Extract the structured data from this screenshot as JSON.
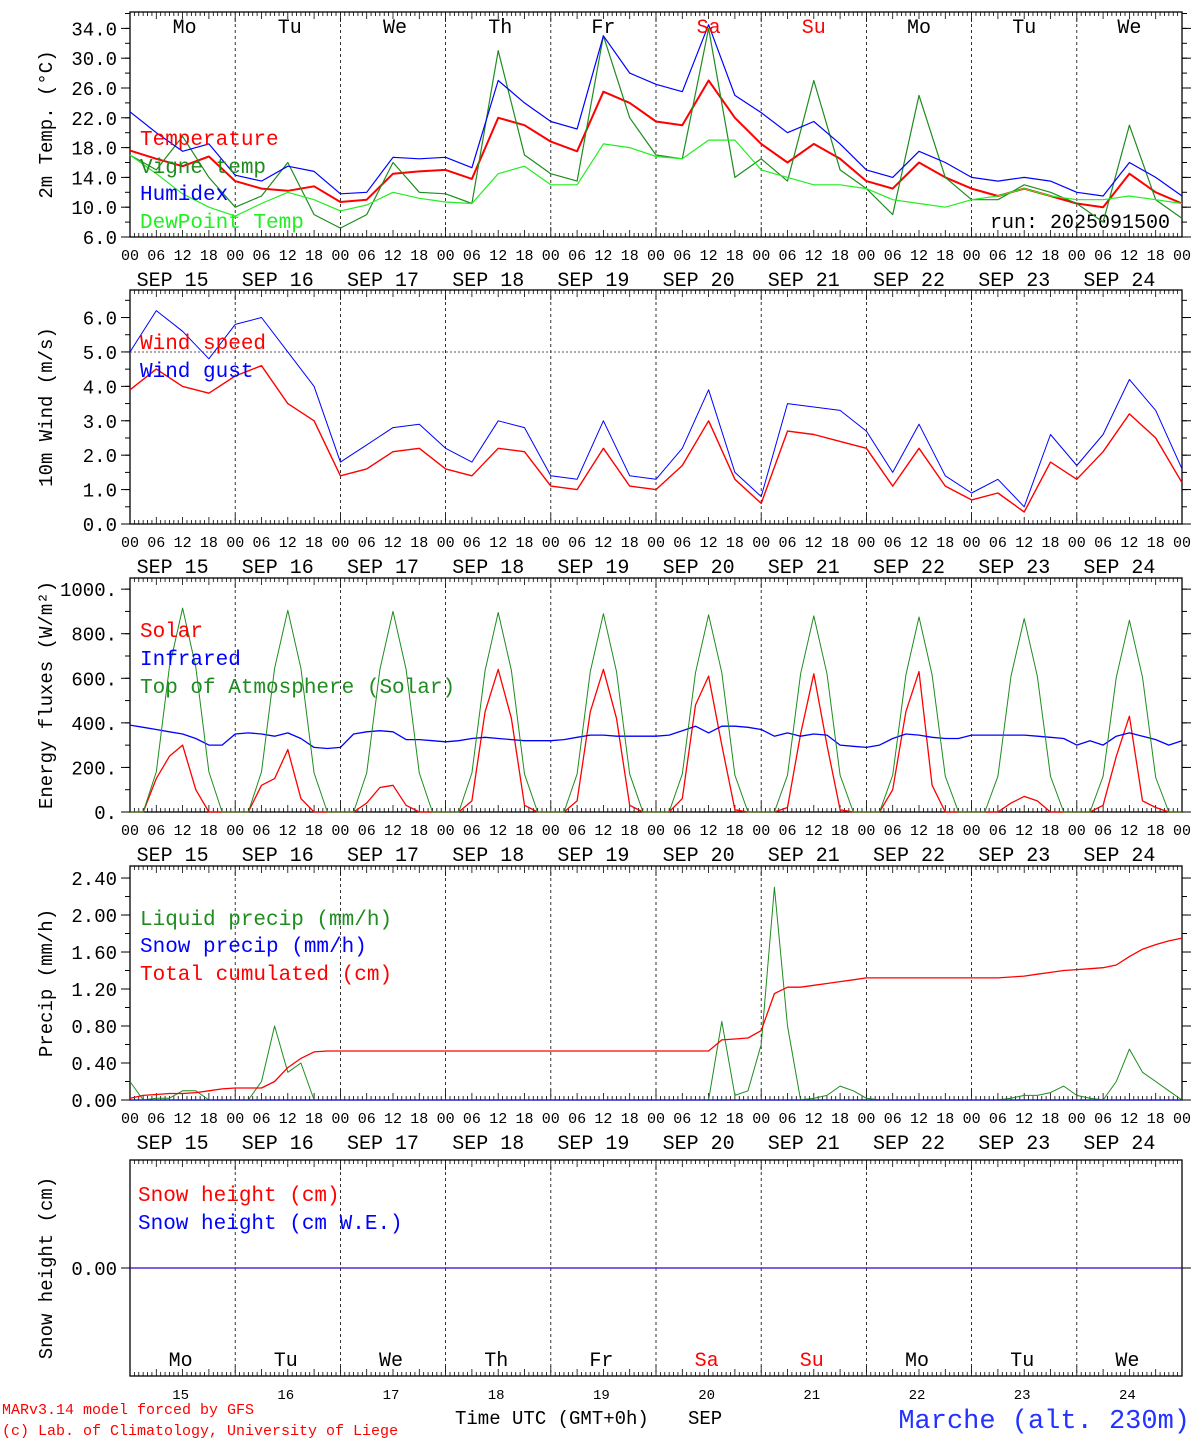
{
  "hour_labels": [
    "00",
    "06",
    "12",
    "18"
  ],
  "date_labels": [
    "SEP 15",
    "SEP 16",
    "SEP 17",
    "SEP 18",
    "SEP 19",
    "SEP 20",
    "SEP 21",
    "SEP 22",
    "SEP 23",
    "SEP 24"
  ],
  "weekdays": [
    {
      "label": "Mo",
      "color": "#000000"
    },
    {
      "label": "Tu",
      "color": "#000000"
    },
    {
      "label": "We",
      "color": "#000000"
    },
    {
      "label": "Th",
      "color": "#000000"
    },
    {
      "label": "Fr",
      "color": "#000000"
    },
    {
      "label": "Sa",
      "color": "#ff0000"
    },
    {
      "label": "Su",
      "color": "#ff0000"
    },
    {
      "label": "Mo",
      "color": "#000000"
    },
    {
      "label": "Tu",
      "color": "#000000"
    },
    {
      "label": "We",
      "color": "#000000"
    }
  ],
  "day_numbers": [
    "15",
    "16",
    "17",
    "18",
    "19",
    "20",
    "21",
    "22",
    "23",
    "24"
  ],
  "run_label": "run: 2025091500",
  "footer": {
    "xlabel": "Time UTC (GMT+0h)",
    "month": "SEP",
    "model": "MARv3.14 model forced by GFS",
    "credit": "(c) Lab. of Climatology, University of Liege",
    "station": "Marche (alt. 230m)"
  },
  "chart_data": [
    {
      "type": "line",
      "ylabel": "2m Temp. (°C)",
      "ylim": [
        6,
        36.2
      ],
      "yticks": [
        6,
        10,
        14,
        18,
        22,
        26,
        30,
        34
      ],
      "ytick_labels": [
        "6.0",
        "10.0",
        "14.0",
        "18.0",
        "22.0",
        "26.0",
        "30.0",
        "34.0"
      ],
      "minor_step": 2,
      "x_step_hours": 6,
      "series": [
        {
          "name": "Temperature",
          "color": "#ff0000",
          "width": 2,
          "values": [
            17.6,
            16.5,
            15.5,
            16.8,
            13.5,
            12.5,
            12.2,
            12.8,
            10.7,
            11,
            14.5,
            14.8,
            15,
            13.8,
            22,
            21,
            18.8,
            17.5,
            25.5,
            24,
            21.5,
            21,
            27,
            22,
            18.5,
            16,
            18.5,
            16.5,
            13.5,
            12.5,
            16,
            14,
            12.5,
            11.5,
            12.5,
            11.5,
            10.5,
            10,
            14.5,
            12,
            10.5
          ]
        },
        {
          "name": "Vigne temp",
          "color": "#1e8c1e",
          "width": 1.2,
          "values": [
            17,
            15,
            19.5,
            14,
            10,
            11.5,
            16,
            9,
            7.2,
            9,
            16,
            12,
            11.8,
            10.5,
            31,
            17,
            14.5,
            13.5,
            33,
            22,
            17,
            16.5,
            34,
            14,
            16.5,
            13.5,
            27,
            15,
            12.5,
            9,
            25,
            14,
            11,
            11,
            13,
            12,
            10.5,
            8,
            21,
            11,
            8.5
          ]
        },
        {
          "name": "Humidex",
          "color": "#0000ff",
          "width": 1.2,
          "values": [
            22.8,
            20,
            17.5,
            18.5,
            14.3,
            13.5,
            15.5,
            14.8,
            11.8,
            12,
            16.7,
            16.5,
            16.7,
            15.3,
            27,
            24,
            21.5,
            20.5,
            33,
            28,
            26.5,
            25.5,
            34.5,
            25,
            22.7,
            20,
            21.5,
            18.5,
            15,
            14,
            17.5,
            16,
            14,
            13.5,
            14,
            13.5,
            12,
            11.5,
            16,
            14,
            11.5
          ]
        },
        {
          "name": "DewPoint Temp",
          "color": "#22ee22",
          "width": 1.2,
          "values": [
            17,
            14.5,
            11.8,
            10,
            8.8,
            10.5,
            12,
            11,
            9.5,
            10.3,
            12,
            11.2,
            10.7,
            10.5,
            14.5,
            15.5,
            13,
            13,
            18.5,
            18,
            16.8,
            16.5,
            19,
            19,
            15,
            14,
            13,
            13,
            12.5,
            11,
            10.5,
            10,
            11,
            11.5,
            12.5,
            11.5,
            11,
            11,
            11.5,
            11,
            10.5
          ]
        }
      ]
    },
    {
      "type": "line",
      "ylabel": "10m Wind (m/s)",
      "ylim": [
        0,
        6.8
      ],
      "yticks": [
        0,
        1,
        2,
        3,
        4,
        5,
        6
      ],
      "ytick_labels": [
        "0.0",
        "1.0",
        "2.0",
        "3.0",
        "4.0",
        "5.0",
        "6.0"
      ],
      "minor_step": 0.5,
      "reference_line": 5.0,
      "x_step_hours": 6,
      "series": [
        {
          "name": "Wind speed",
          "color": "#ff0000",
          "width": 1.4,
          "values": [
            3.9,
            4.5,
            4,
            3.8,
            4.3,
            4.6,
            3.5,
            3,
            1.4,
            1.6,
            2.1,
            2.2,
            1.6,
            1.4,
            2.2,
            2.1,
            1.1,
            1.0,
            2.2,
            1.1,
            1.0,
            1.7,
            3.0,
            1.3,
            0.6,
            2.7,
            2.6,
            2.4,
            2.2,
            1.1,
            2.2,
            1.1,
            0.7,
            0.9,
            0.35,
            1.8,
            1.3,
            2.1,
            3.2,
            2.5,
            1.2
          ]
        },
        {
          "name": "Wind gust",
          "color": "#0000ff",
          "width": 1,
          "values": [
            5.0,
            6.2,
            5.6,
            4.8,
            5.8,
            6.0,
            5.0,
            4.0,
            1.8,
            2.3,
            2.8,
            2.9,
            2.2,
            1.8,
            3.0,
            2.8,
            1.4,
            1.3,
            3.0,
            1.4,
            1.3,
            2.2,
            3.9,
            1.5,
            0.8,
            3.5,
            3.4,
            3.3,
            2.7,
            1.5,
            2.9,
            1.4,
            0.9,
            1.3,
            0.5,
            2.6,
            1.7,
            2.6,
            4.2,
            3.3,
            1.6
          ]
        }
      ]
    },
    {
      "type": "line",
      "ylabel": "Energy fluxes (W/m²)",
      "ylim": [
        0,
        1050
      ],
      "yticks": [
        0,
        200,
        400,
        600,
        800,
        1000
      ],
      "ytick_labels": [
        "0.",
        "200.",
        "400.",
        "600.",
        "800.",
        "1000."
      ],
      "minor_step": 100,
      "x_step_hours": 3,
      "series": [
        {
          "name": "Solar",
          "color": "#ff0000",
          "width": 1.3,
          "values": [
            0,
            0,
            150,
            250,
            300,
            100,
            0,
            0,
            0,
            0,
            120,
            150,
            280,
            60,
            0,
            0,
            0,
            0,
            40,
            110,
            120,
            30,
            0,
            0,
            0,
            0,
            50,
            450,
            640,
            420,
            30,
            0,
            0,
            0,
            50,
            450,
            640,
            420,
            30,
            0,
            0,
            0,
            60,
            480,
            610,
            300,
            10,
            0,
            0,
            0,
            20,
            350,
            620,
            300,
            10,
            0,
            0,
            0,
            100,
            450,
            630,
            120,
            0,
            0,
            0,
            0,
            0,
            40,
            70,
            50,
            0,
            0,
            0,
            0,
            30,
            250,
            430,
            50,
            20,
            0,
            0
          ]
        },
        {
          "name": "Infrared",
          "color": "#0000ff",
          "width": 1.3,
          "values": [
            390,
            380,
            370,
            360,
            350,
            330,
            300,
            300,
            350,
            355,
            350,
            340,
            355,
            330,
            290,
            285,
            290,
            350,
            360,
            365,
            360,
            325,
            325,
            320,
            315,
            320,
            330,
            335,
            330,
            325,
            320,
            320,
            320,
            325,
            335,
            345,
            345,
            340,
            340,
            340,
            340,
            345,
            365,
            385,
            355,
            385,
            385,
            380,
            370,
            340,
            355,
            340,
            350,
            345,
            300,
            295,
            290,
            300,
            330,
            350,
            345,
            335,
            330,
            330,
            345,
            345,
            345,
            345,
            345,
            340,
            335,
            330,
            300,
            320,
            300,
            340,
            355,
            340,
            325,
            300,
            320
          ]
        },
        {
          "name": "Top of Atmosphere (Solar)",
          "color": "#1e8c1e",
          "width": 1,
          "values": [
            0,
            0,
            180,
            650,
            915,
            650,
            180,
            0,
            0,
            0,
            180,
            645,
            905,
            645,
            175,
            0,
            0,
            0,
            175,
            640,
            900,
            640,
            175,
            0,
            0,
            0,
            175,
            635,
            895,
            635,
            170,
            0,
            0,
            0,
            170,
            630,
            890,
            630,
            170,
            0,
            0,
            0,
            170,
            625,
            885,
            625,
            165,
            0,
            0,
            0,
            165,
            620,
            880,
            620,
            165,
            0,
            0,
            0,
            165,
            615,
            875,
            615,
            160,
            0,
            0,
            0,
            160,
            610,
            868,
            610,
            160,
            0,
            0,
            0,
            160,
            605,
            860,
            605,
            155,
            0,
            0
          ]
        }
      ]
    },
    {
      "type": "line",
      "ylabel": "Precip (mm/h)",
      "ylim": [
        0,
        2.53
      ],
      "yticks": [
        0,
        0.4,
        0.8,
        1.2,
        1.6,
        2.0,
        2.4
      ],
      "ytick_labels": [
        "0.00",
        "0.40",
        "0.80",
        "1.20",
        "1.60",
        "2.00",
        "2.40"
      ],
      "minor_step": 0.2,
      "x_step_hours": 3,
      "series": [
        {
          "name": "Liquid precip (mm/h)",
          "color": "#1e8c1e",
          "width": 1,
          "values": [
            0.2,
            0,
            0.02,
            0.02,
            0.1,
            0.1,
            0,
            0,
            0,
            0,
            0.2,
            0.8,
            0.3,
            0.4,
            0,
            0,
            0,
            0,
            0,
            0,
            0,
            0,
            0,
            0,
            0,
            0,
            0,
            0,
            0,
            0,
            0,
            0,
            0,
            0,
            0,
            0,
            0,
            0,
            0,
            0,
            0,
            0,
            0,
            0,
            0,
            0.85,
            0.05,
            0.1,
            0.6,
            2.3,
            0.8,
            0,
            0.02,
            0.05,
            0.15,
            0.1,
            0.02,
            0,
            0,
            0,
            0,
            0,
            0,
            0,
            0,
            0,
            0,
            0.02,
            0.05,
            0.05,
            0.08,
            0.15,
            0.05,
            0.02,
            0,
            0.2,
            0.55,
            0.3,
            0.2,
            0.1,
            0
          ]
        },
        {
          "name": "Snow precip (mm/h)",
          "color": "#0000ff",
          "width": 1,
          "values": [
            0,
            0
          ]
        },
        {
          "name": "Total cumulated (cm)",
          "color": "#ff0000",
          "width": 1.3,
          "values": [
            0.02,
            0.05,
            0.06,
            0.07,
            0.07,
            0.08,
            0.1,
            0.12,
            0.13,
            0.13,
            0.13,
            0.2,
            0.35,
            0.45,
            0.52,
            0.53,
            0.53,
            0.53,
            0.53,
            0.53,
            0.53,
            0.53,
            0.53,
            0.53,
            0.53,
            0.53,
            0.53,
            0.53,
            0.53,
            0.53,
            0.53,
            0.53,
            0.53,
            0.53,
            0.53,
            0.53,
            0.53,
            0.53,
            0.53,
            0.53,
            0.53,
            0.53,
            0.53,
            0.53,
            0.53,
            0.65,
            0.66,
            0.67,
            0.75,
            1.15,
            1.22,
            1.22,
            1.24,
            1.26,
            1.28,
            1.3,
            1.32,
            1.32,
            1.32,
            1.32,
            1.32,
            1.32,
            1.32,
            1.32,
            1.32,
            1.32,
            1.32,
            1.33,
            1.34,
            1.36,
            1.38,
            1.4,
            1.41,
            1.42,
            1.43,
            1.46,
            1.55,
            1.63,
            1.68,
            1.72,
            1.75
          ]
        }
      ]
    },
    {
      "type": "line",
      "ylabel": "Snow height (cm)",
      "ylim": [
        -1,
        1
      ],
      "yticks": [
        0
      ],
      "ytick_labels": [
        "0.00"
      ],
      "minor_step": 0,
      "x_step_hours": 240,
      "series": [
        {
          "name": "Snow height (cm)",
          "color": "#ff0000",
          "width": 1.3,
          "values": [
            0,
            0
          ]
        },
        {
          "name": "Snow height (cm W.E.)",
          "color": "#0000ff",
          "width": 1,
          "values": [
            0,
            0
          ]
        }
      ]
    }
  ]
}
